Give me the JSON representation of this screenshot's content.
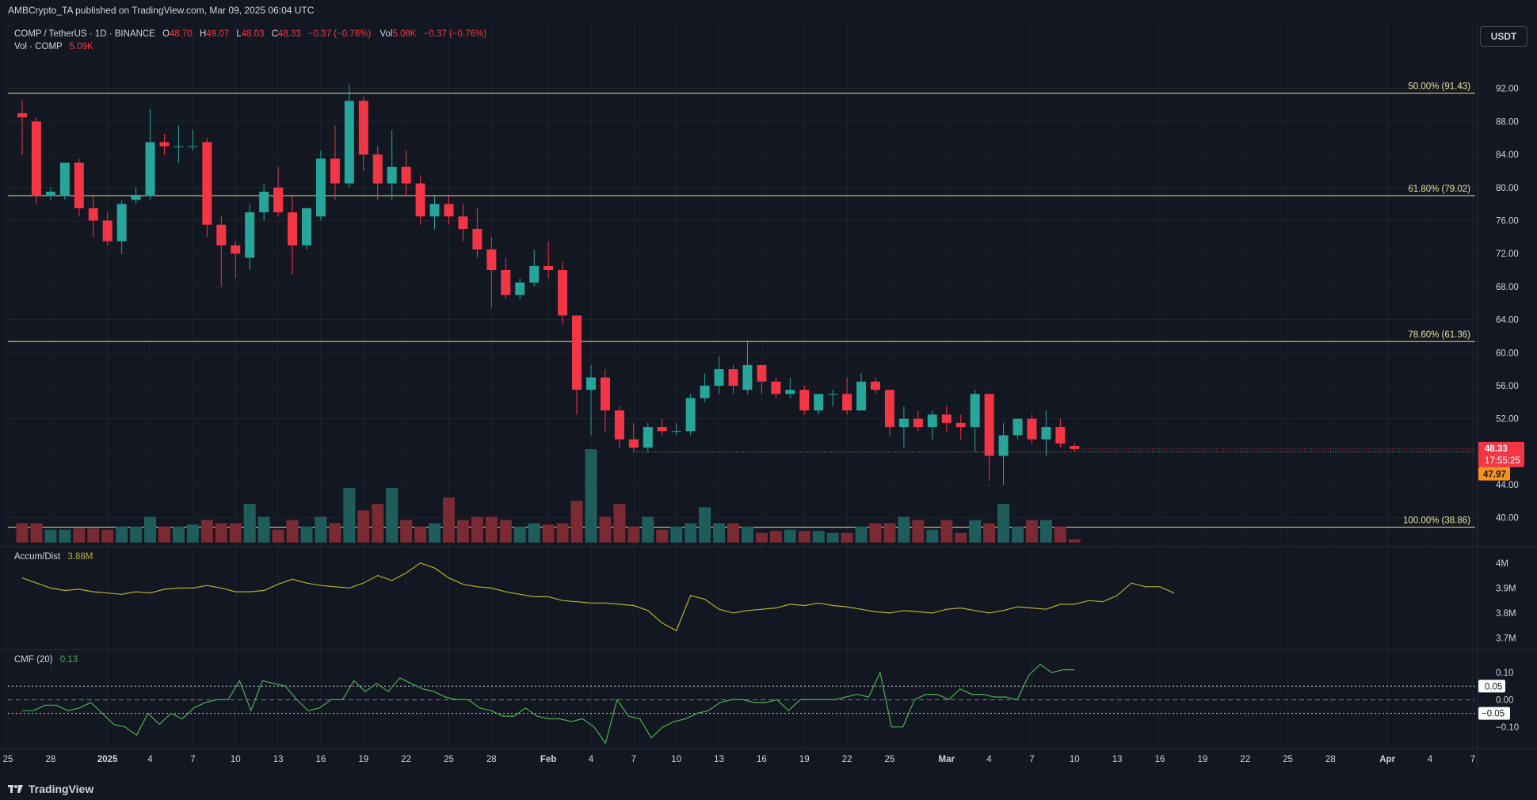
{
  "header": {
    "publish_line": "AMBCrypto_TA published on TradingView.com, Mar 09, 2025 06:04 UTC"
  },
  "legend": {
    "symbol": "COMP / TetherUS · 1D · BINANCE",
    "o_label": "O",
    "o_value": "48.70",
    "h_label": "H",
    "h_value": "49.07",
    "l_label": "L",
    "l_value": "48.03",
    "c_label": "C",
    "c_value": "48.33",
    "change": "−0.37 (−0.76%)",
    "vol_label": "Vol",
    "vol_value": "5.09K",
    "vol_change": "−0.37 (−0.76%)",
    "vol_series_label": "Vol · COMP",
    "vol_series_value": "5.09K"
  },
  "currency_button": "USDT",
  "price_badges": {
    "last_price": "48.33",
    "countdown": "17:55:25",
    "prev_price": "47.97"
  },
  "fib_labels": [
    {
      "text": "50.00% (91.43)",
      "price": 91.43
    },
    {
      "text": "61.80% (79.02)",
      "price": 79.02
    },
    {
      "text": "78.60% (61.36)",
      "price": 61.36
    },
    {
      "text": "100.00% (38.86)",
      "price": 38.86
    }
  ],
  "indicators": {
    "accum_title": "Accum/Dist",
    "accum_value": "3.88M",
    "cmf_title": "CMF (20)",
    "cmf_value": "0.13",
    "cmf_badge_pos": "0.05",
    "cmf_badge_neg": "−0.05"
  },
  "footer": {
    "brand": "TradingView"
  },
  "colors": {
    "bg": "#131722",
    "up": "#26a69a",
    "down": "#f23645",
    "vol_up": "#1f5d5c",
    "vol_down": "#7a2a33",
    "fib": "#e8e29a",
    "accum": "#b5b02a",
    "cmf": "#4caf50",
    "text": "#d1d4dc",
    "grid": "#1e222d"
  },
  "chart_data": {
    "type": "candlestick",
    "price_axis": {
      "ticks": [
        "92.00",
        "88.00",
        "84.00",
        "80.00",
        "76.00",
        "72.00",
        "68.00",
        "64.00",
        "60.00",
        "56.00",
        "52.00",
        "48.00",
        "44.00",
        "40.00"
      ],
      "range": [
        37.0,
        96.0
      ]
    },
    "accum_axis": {
      "ticks": [
        "4M",
        "3.9M",
        "3.8M",
        "3.7M"
      ],
      "range": [
        3.67,
        4.05
      ]
    },
    "cmf_axis": {
      "ticks": [
        "0.10",
        "0.00",
        "−0.10"
      ],
      "range": [
        -0.15,
        0.17
      ]
    },
    "x_axis": {
      "labels": [
        "25",
        "28",
        "2025",
        "4",
        "7",
        "10",
        "13",
        "16",
        "19",
        "22",
        "25",
        "28",
        "Feb",
        "4",
        "7",
        "10",
        "13",
        "16",
        "19",
        "22",
        "25",
        "Mar",
        "4",
        "7",
        "10",
        "13",
        "16",
        "19",
        "22",
        "25",
        "28",
        "Apr",
        "4",
        "7"
      ],
      "label_day_index": [
        -1,
        2,
        6,
        9,
        12,
        15,
        18,
        21,
        24,
        27,
        30,
        33,
        37,
        40,
        43,
        46,
        49,
        52,
        55,
        58,
        61,
        65,
        68,
        71,
        74,
        77,
        80,
        83,
        86,
        89,
        92,
        96,
        99,
        102
      ]
    },
    "candles_start": "2024-12-26",
    "candles": [
      [
        89.0,
        90.5,
        84.0,
        88.5,
        3.0
      ],
      [
        88.0,
        88.5,
        78.0,
        79.0,
        3.0
      ],
      [
        79.0,
        80.0,
        78.5,
        79.5,
        2.0
      ],
      [
        79.0,
        83.0,
        78.5,
        83.0,
        2.0
      ],
      [
        83.0,
        83.5,
        76.5,
        77.5,
        2.2
      ],
      [
        77.5,
        79.0,
        74.0,
        76.0,
        2.2
      ],
      [
        76.0,
        77.0,
        73.0,
        73.5,
        2.0
      ],
      [
        73.5,
        78.5,
        72.0,
        78.0,
        2.5
      ],
      [
        78.5,
        80.0,
        78.0,
        79.0,
        2.5
      ],
      [
        79.0,
        89.5,
        78.5,
        85.5,
        4.0
      ],
      [
        85.5,
        86.5,
        84.0,
        85.0,
        2.5
      ],
      [
        85.0,
        87.5,
        83.0,
        85.0,
        2.5
      ],
      [
        85.0,
        87.0,
        84.5,
        85.0,
        2.8
      ],
      [
        85.5,
        86.0,
        74.0,
        75.5,
        3.5
      ],
      [
        75.5,
        76.5,
        68.0,
        73.0,
        3.0
      ],
      [
        73.0,
        73.5,
        69.0,
        72.0,
        3.0
      ],
      [
        71.5,
        78.0,
        70.0,
        77.0,
        6.0
      ],
      [
        77.0,
        80.5,
        76.0,
        79.5,
        4.0
      ],
      [
        80.0,
        82.5,
        76.5,
        77.0,
        2.0
      ],
      [
        77.0,
        79.0,
        69.5,
        73.0,
        3.5
      ],
      [
        73.0,
        77.5,
        72.5,
        77.5,
        2.5
      ],
      [
        76.5,
        84.5,
        76.0,
        83.5,
        4.0
      ],
      [
        83.5,
        87.5,
        78.5,
        80.5,
        3.0
      ],
      [
        80.5,
        92.5,
        80.0,
        90.5,
        8.5
      ],
      [
        90.5,
        91.0,
        82.0,
        84.0,
        5.0
      ],
      [
        84.0,
        85.0,
        78.5,
        80.5,
        6.0
      ],
      [
        80.5,
        87.0,
        78.5,
        82.5,
        8.5
      ],
      [
        82.5,
        84.5,
        79.0,
        80.5,
        3.5
      ],
      [
        80.5,
        81.5,
        75.5,
        76.5,
        2.5
      ],
      [
        76.5,
        79.0,
        75.0,
        78.0,
        3.0
      ],
      [
        78.0,
        79.0,
        75.5,
        76.5,
        7.0
      ],
      [
        76.5,
        78.0,
        73.5,
        75.0,
        3.5
      ],
      [
        75.0,
        77.5,
        71.5,
        72.5,
        4.0
      ],
      [
        72.5,
        74.0,
        65.5,
        70.0,
        4.0
      ],
      [
        70.0,
        71.5,
        66.5,
        67.0,
        3.5
      ],
      [
        67.0,
        69.0,
        66.5,
        68.5,
        2.5
      ],
      [
        68.5,
        72.5,
        68.0,
        70.5,
        3.0
      ],
      [
        70.5,
        73.5,
        69.0,
        70.0,
        2.8
      ],
      [
        70.0,
        71.0,
        63.5,
        64.5,
        3.0
      ],
      [
        64.5,
        64.5,
        52.5,
        55.5,
        6.5
      ],
      [
        55.5,
        58.5,
        50.0,
        57.0,
        14.5
      ],
      [
        57.0,
        58.0,
        50.5,
        53.0,
        4.0
      ],
      [
        53.0,
        53.5,
        48.5,
        49.5,
        6.0
      ],
      [
        49.5,
        51.5,
        48.0,
        48.5,
        2.5
      ],
      [
        48.5,
        51.5,
        48.0,
        51.0,
        4.0
      ],
      [
        51.0,
        52.0,
        50.0,
        50.5,
        2.0
      ],
      [
        50.5,
        51.5,
        50.0,
        50.5,
        2.5
      ],
      [
        50.5,
        55.0,
        50.0,
        54.5,
        3.0
      ],
      [
        54.5,
        57.5,
        54.0,
        56.0,
        5.5
      ],
      [
        56.0,
        59.5,
        55.0,
        58.0,
        3.0
      ],
      [
        58.0,
        58.5,
        55.0,
        56.0,
        3.0
      ],
      [
        55.5,
        61.5,
        55.0,
        58.5,
        2.5
      ],
      [
        58.5,
        58.5,
        55.0,
        56.5,
        1.5
      ],
      [
        56.5,
        57.0,
        54.5,
        55.0,
        1.8
      ],
      [
        55.0,
        57.0,
        54.5,
        55.5,
        2.0
      ],
      [
        55.5,
        56.0,
        52.5,
        53.0,
        1.8
      ],
      [
        53.0,
        55.0,
        52.5,
        55.0,
        1.8
      ],
      [
        55.0,
        55.5,
        53.5,
        55.0,
        1.5
      ],
      [
        55.0,
        57.0,
        52.5,
        53.0,
        1.5
      ],
      [
        53.0,
        57.5,
        53.0,
        56.5,
        2.5
      ],
      [
        56.5,
        57.0,
        55.0,
        55.5,
        3.0
      ],
      [
        55.5,
        55.5,
        50.0,
        51.0,
        3.0
      ],
      [
        51.0,
        53.5,
        48.5,
        52.0,
        4.0
      ],
      [
        52.0,
        53.0,
        50.5,
        51.0,
        3.5
      ],
      [
        51.0,
        53.0,
        49.5,
        52.5,
        2.0
      ],
      [
        52.5,
        53.5,
        50.5,
        51.5,
        3.5
      ],
      [
        51.5,
        52.5,
        49.5,
        51.0,
        1.5
      ],
      [
        51.0,
        55.5,
        48.0,
        55.0,
        3.5
      ],
      [
        55.0,
        55.0,
        44.5,
        47.5,
        3.0
      ],
      [
        47.5,
        51.5,
        44.0,
        50.0,
        6.0
      ],
      [
        50.0,
        52.0,
        49.5,
        52.0,
        2.5
      ],
      [
        52.0,
        52.5,
        49.0,
        49.5,
        3.5
      ],
      [
        49.5,
        53.0,
        47.5,
        51.0,
        3.5
      ],
      [
        51.0,
        52.0,
        48.5,
        49.0,
        2.5
      ],
      [
        48.7,
        49.07,
        48.03,
        48.33,
        0.5
      ]
    ],
    "accum_series": [
      3.94,
      3.92,
      3.9,
      3.89,
      3.895,
      3.885,
      3.88,
      3.875,
      3.885,
      3.88,
      3.895,
      3.9,
      3.9,
      3.91,
      3.9,
      3.885,
      3.885,
      3.89,
      3.915,
      3.935,
      3.92,
      3.91,
      3.905,
      3.9,
      3.92,
      3.95,
      3.93,
      3.96,
      4.0,
      3.98,
      3.94,
      3.915,
      3.905,
      3.9,
      3.885,
      3.875,
      3.865,
      3.865,
      3.85,
      3.845,
      3.84,
      3.84,
      3.835,
      3.83,
      3.81,
      3.76,
      3.73,
      3.87,
      3.855,
      3.815,
      3.8,
      3.81,
      3.815,
      3.82,
      3.835,
      3.83,
      3.84,
      3.83,
      3.825,
      3.815,
      3.805,
      3.8,
      3.81,
      3.805,
      3.8,
      3.815,
      3.82,
      3.81,
      3.8,
      3.81,
      3.825,
      3.82,
      3.815,
      3.835,
      3.835,
      3.85,
      3.845,
      3.87,
      3.92,
      3.905,
      3.905,
      3.88
    ],
    "cmf_series": [
      -0.04,
      -0.04,
      -0.02,
      -0.02,
      -0.04,
      -0.03,
      -0.01,
      -0.05,
      -0.09,
      -0.1,
      -0.13,
      -0.05,
      -0.09,
      -0.05,
      -0.07,
      -0.03,
      -0.01,
      0.0,
      0.0,
      0.07,
      -0.04,
      0.07,
      0.06,
      0.05,
      0.0,
      -0.04,
      -0.03,
      0.0,
      0.0,
      0.07,
      0.03,
      0.06,
      0.03,
      0.08,
      0.06,
      0.04,
      0.03,
      0.01,
      0.0,
      0.0,
      -0.03,
      -0.04,
      -0.06,
      -0.06,
      -0.03,
      -0.06,
      -0.07,
      -0.07,
      -0.08,
      -0.07,
      -0.1,
      -0.16,
      0.0,
      -0.06,
      -0.07,
      -0.14,
      -0.1,
      -0.08,
      -0.07,
      -0.05,
      -0.04,
      -0.01,
      0.0,
      0.0,
      -0.01,
      -0.01,
      0.0,
      -0.04,
      0.0,
      0.0,
      0.0,
      0.0,
      0.01,
      0.02,
      0.01,
      0.1,
      -0.1,
      -0.1,
      0.0,
      0.02,
      0.02,
      0.0,
      0.04,
      0.02,
      0.02,
      0.01,
      0.01,
      0.0,
      0.09,
      0.13,
      0.1,
      0.11,
      0.11
    ]
  }
}
